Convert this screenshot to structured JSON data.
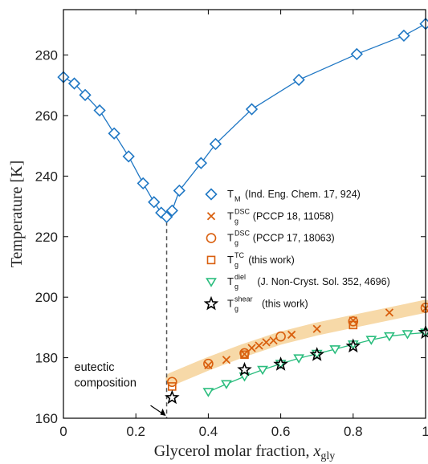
{
  "chart_data": {
    "type": "scatter",
    "xlabel": "Glycerol molar fraction, ",
    "xlabel_var": "x",
    "xlabel_sub": "gly",
    "ylabel": "Temperature [K]",
    "xlim": [
      0,
      1
    ],
    "ylim": [
      160,
      295
    ],
    "xticks": [
      "0",
      "0.2",
      "0.4",
      "0.6",
      "0.8",
      "1"
    ],
    "xtick_values": [
      0,
      0.2,
      0.4,
      0.6,
      0.8,
      1
    ],
    "yticks": [
      "160",
      "180",
      "200",
      "220",
      "240",
      "260",
      "280"
    ],
    "ytick_values": [
      160,
      180,
      200,
      220,
      240,
      260,
      280
    ],
    "grid": false,
    "legend_position": "center-right",
    "eutectic": {
      "x": 0.285,
      "label_line1": "eutectic",
      "label_line2": "composition",
      "text_x": 0.03,
      "text_y1": 175.6,
      "text_y2": 170.5
    },
    "band": {
      "color": "#f7d9a8",
      "x": [
        0.3,
        0.4,
        0.5,
        0.6,
        0.7,
        0.8,
        0.9,
        1.0
      ],
      "y": [
        173,
        178,
        182.5,
        186.5,
        189.5,
        192,
        194.5,
        197
      ]
    },
    "series": [
      {
        "key": "tm",
        "sym": "T",
        "sub": "M",
        "sup": "",
        "ref": "(Ind. Eng. Chem. 17, 924)",
        "marker": "diamond",
        "color": "#1f77c4",
        "line": true,
        "x": [
          0.0,
          0.03,
          0.06,
          0.1,
          0.14,
          0.18,
          0.22,
          0.25,
          0.27,
          0.285,
          0.3,
          0.32,
          0.38,
          0.42,
          0.52,
          0.65,
          0.81,
          0.94,
          1.0
        ],
        "y": [
          272.7,
          270.6,
          266.8,
          261.7,
          254.1,
          246.5,
          237.6,
          231.4,
          227.9,
          226.5,
          228.6,
          235.2,
          244.3,
          250.6,
          262.1,
          271.8,
          280.3,
          286.4,
          290.3
        ]
      },
      {
        "key": "tg_dsc1",
        "sym": "T",
        "sub": "g",
        "sup": "DSC",
        "ref": "(PCCP 18, 11058)",
        "marker": "x",
        "color": "#d95f0e",
        "line": false,
        "x": [
          0.4,
          0.45,
          0.5,
          0.52,
          0.54,
          0.56,
          0.58,
          0.63,
          0.7,
          0.8,
          0.9,
          1.0
        ],
        "y": [
          177.5,
          179.3,
          181.2,
          183.2,
          184.0,
          185.1,
          185.7,
          187.6,
          189.5,
          192.3,
          194.9,
          196.3
        ]
      },
      {
        "key": "tg_dsc2",
        "sym": "T",
        "sub": "g",
        "sup": "DSC",
        "ref": "(PCCP 17, 18063)",
        "marker": "circle",
        "color": "#d95f0e",
        "line": false,
        "x": [
          0.3,
          0.4,
          0.5,
          0.6,
          0.8,
          1.0
        ],
        "y": [
          172.0,
          178.0,
          181.5,
          187.0,
          192.0,
          196.5
        ]
      },
      {
        "key": "tg_tc",
        "sym": "T",
        "sub": "g",
        "sup": "TC",
        "ref": "(this work)",
        "marker": "square",
        "color": "#d95f0e",
        "line": false,
        "x": [
          0.3,
          0.5,
          0.8
        ],
        "y": [
          170.5,
          181.0,
          190.8
        ]
      },
      {
        "key": "tg_diel",
        "sym": "T",
        "sub": "g",
        "sup": "diel",
        "ref": "(J. Non-Cryst. Sol. 352, 4696)",
        "marker": "triangle-down",
        "color": "#2bbd7e",
        "line": true,
        "x": [
          0.4,
          0.45,
          0.5,
          0.55,
          0.6,
          0.65,
          0.7,
          0.75,
          0.8,
          0.85,
          0.9,
          0.95,
          1.0
        ],
        "y": [
          168.7,
          171.3,
          173.8,
          176.0,
          178.0,
          179.8,
          181.3,
          182.8,
          184.4,
          185.9,
          187.1,
          187.8,
          188.3
        ]
      },
      {
        "key": "tg_shear",
        "sym": "T",
        "sub": "g",
        "sup": "shear",
        "ref": "(this work)",
        "marker": "star",
        "color": "#000000",
        "line": false,
        "x": [
          0.3,
          0.5,
          0.6,
          0.7,
          0.8,
          1.0
        ],
        "y": [
          166.8,
          176.0,
          177.8,
          181.0,
          183.8,
          188.3
        ]
      }
    ]
  }
}
